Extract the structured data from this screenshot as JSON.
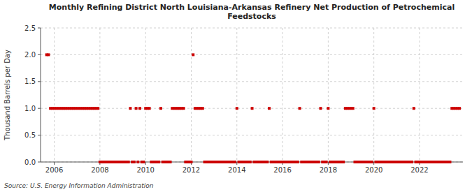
{
  "chart_data": {
    "type": "scatter",
    "title": "Monthly Refining District North Louisiana-Arkansas Refinery Net Production of Petrochemical\nFeedstocks",
    "y_label": "Thousand Barrels per Day",
    "source": "Source: U.S. Energy Information Administration",
    "color": "#cc0000",
    "marker": "square",
    "grid": true,
    "xlim": [
      2005.4,
      2023.9
    ],
    "xticks": [
      2006,
      2008,
      2010,
      2012,
      2014,
      2016,
      2018,
      2020,
      2022
    ],
    "ylim": [
      0.0,
      2.5
    ],
    "yticks": [
      {
        "value": 0.0,
        "label": "0.0"
      },
      0.5,
      {
        "value": 1.0,
        "label": "1.0"
      },
      1.5,
      {
        "value": 2.0,
        "label": "2.0"
      },
      2.5
    ],
    "x": [
      2005.6666667,
      2005.75,
      2005.8333333,
      2005.9166667,
      2006,
      2006.0833333,
      2006.1666667,
      2006.25,
      2006.3333333,
      2006.4166667,
      2006.5,
      2006.5833333,
      2006.6666667,
      2006.75,
      2006.8333333,
      2006.9166667,
      2007,
      2007.0833333,
      2007.1666667,
      2007.25,
      2007.3333333,
      2007.4166667,
      2007.5,
      2007.5833333,
      2007.6666667,
      2007.75,
      2007.8333333,
      2007.9166667,
      2008,
      2008.0833333,
      2008.1666667,
      2008.25,
      2008.3333333,
      2008.4166667,
      2008.5,
      2008.5833333,
      2008.6666667,
      2008.75,
      2008.8333333,
      2008.9166667,
      2009,
      2009.0833333,
      2009.1666667,
      2009.25,
      2009.3333333,
      2009.4166667,
      2009.5,
      2009.5833333,
      2009.6666667,
      2009.75,
      2009.8333333,
      2009.9166667,
      2010,
      2010.0833333,
      2010.1666667,
      2010.25,
      2010.3333333,
      2010.4166667,
      2010.5,
      2010.5833333,
      2010.6666667,
      2010.75,
      2010.8333333,
      2010.9166667,
      2011,
      2011.0833333,
      2011.1666667,
      2011.25,
      2011.3333333,
      2011.4166667,
      2011.5,
      2011.5833333,
      2011.6666667,
      2011.75,
      2011.8333333,
      2011.9166667,
      2012,
      2012.0833333,
      2012.1666667,
      2012.25,
      2012.3333333,
      2012.4166667,
      2012.5,
      2012.5833333,
      2012.6666667,
      2012.75,
      2012.8333333,
      2012.9166667,
      2013,
      2013.0833333,
      2013.1666667,
      2013.25,
      2013.3333333,
      2013.4166667,
      2013.5,
      2013.5833333,
      2013.6666667,
      2013.75,
      2013.8333333,
      2013.9166667,
      2014,
      2014.0833333,
      2014.1666667,
      2014.25,
      2014.3333333,
      2014.4166667,
      2014.5,
      2014.5833333,
      2014.6666667,
      2014.75,
      2014.8333333,
      2014.9166667,
      2015,
      2015.0833333,
      2015.1666667,
      2015.25,
      2015.3333333,
      2015.4166667,
      2015.5,
      2015.5833333,
      2015.6666667,
      2015.75,
      2015.8333333,
      2015.9166667,
      2016,
      2016.0833333,
      2016.1666667,
      2016.25,
      2016.3333333,
      2016.4166667,
      2016.5,
      2016.5833333,
      2016.6666667,
      2016.75,
      2016.8333333,
      2016.9166667,
      2017,
      2017.0833333,
      2017.1666667,
      2017.25,
      2017.3333333,
      2017.4166667,
      2017.5,
      2017.5833333,
      2017.6666667,
      2017.75,
      2017.8333333,
      2017.9166667,
      2018,
      2018.0833333,
      2018.1666667,
      2018.25,
      2018.3333333,
      2018.4166667,
      2018.5,
      2018.5833333,
      2018.6666667,
      2018.75,
      2018.8333333,
      2018.9166667,
      2019,
      2019.0833333,
      2019.1666667,
      2019.25,
      2019.3333333,
      2019.4166667,
      2019.5,
      2019.5833333,
      2019.6666667,
      2019.75,
      2019.8333333,
      2019.9166667,
      2020,
      2020.0833333,
      2020.1666667,
      2020.25,
      2020.3333333,
      2020.4166667,
      2020.5,
      2020.5833333,
      2020.6666667,
      2020.75,
      2020.8333333,
      2020.9166667,
      2021,
      2021.0833333,
      2021.1666667,
      2021.25,
      2021.3333333,
      2021.4166667,
      2021.5,
      2021.5833333,
      2021.6666667,
      2021.75,
      2021.8333333,
      2021.9166667,
      2022,
      2022.0833333,
      2022.1666667,
      2022.25,
      2022.3333333,
      2022.4166667,
      2022.5,
      2022.5833333,
      2022.6666667,
      2022.75,
      2022.8333333,
      2022.9166667,
      2023,
      2023.0833333,
      2023.1666667,
      2023.25,
      2023.3333333,
      2023.4166667,
      2023.5,
      2023.5833333,
      2023.6666667,
      2023.75
    ],
    "values": [
      2,
      2,
      1,
      1,
      1,
      1,
      1,
      1,
      1,
      1,
      1,
      1,
      1,
      1,
      1,
      1,
      1,
      1,
      1,
      1,
      1,
      1,
      1,
      1,
      1,
      1,
      1,
      1,
      0,
      0,
      0,
      0,
      0,
      0,
      0,
      0,
      0,
      0,
      0,
      0,
      0,
      0,
      0,
      0,
      1,
      0,
      0,
      1,
      0,
      1,
      0,
      0,
      1,
      1,
      1,
      0,
      0,
      0,
      0,
      0,
      1,
      0,
      0,
      0,
      0,
      0,
      1,
      1,
      1,
      1,
      1,
      1,
      1,
      0,
      0,
      0,
      0,
      2,
      1,
      1,
      1,
      1,
      1,
      0,
      0,
      0,
      0,
      0,
      0,
      0,
      0,
      0,
      0,
      0,
      0,
      0,
      0,
      0,
      0,
      0,
      1,
      0,
      0,
      0,
      0,
      0,
      0,
      0,
      1,
      0,
      0,
      0,
      0,
      0,
      0,
      0,
      0,
      1,
      0,
      0,
      0,
      0,
      0,
      0,
      0,
      0,
      0,
      0,
      0,
      0,
      0,
      0,
      0,
      1,
      0,
      0,
      0,
      0,
      0,
      0,
      0,
      0,
      0,
      0,
      1,
      0,
      0,
      0,
      1,
      0,
      0,
      0,
      0,
      0,
      0,
      0,
      0,
      1,
      1,
      1,
      1,
      1,
      0,
      0,
      0,
      0,
      0,
      0,
      0,
      0,
      0,
      0,
      1,
      0,
      0,
      0,
      0,
      0,
      0,
      0,
      0,
      0,
      0,
      0,
      0,
      0,
      0,
      0,
      0,
      0,
      0,
      0,
      0,
      1,
      0,
      0,
      0,
      0,
      0,
      0,
      0,
      0,
      0,
      0,
      0,
      0,
      0,
      0,
      0,
      0,
      0,
      0,
      0,
      1,
      1,
      1,
      1,
      1
    ]
  }
}
